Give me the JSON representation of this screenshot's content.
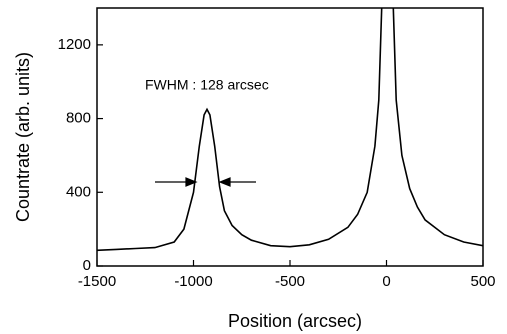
{
  "chart_data": {
    "type": "line",
    "annotation": "FWHM : 128 arcsec",
    "xlabel": "Position (arcsec)",
    "ylabel": "Countrate (arb. units)",
    "x": [
      -1500,
      -1400,
      -1300,
      -1200,
      -1100,
      -1050,
      -1000,
      -970,
      -945,
      -930,
      -915,
      -890,
      -865,
      -840,
      -800,
      -750,
      -700,
      -600,
      -500,
      -400,
      -300,
      -200,
      -150,
      -100,
      -60,
      -40,
      -25,
      5,
      35,
      50,
      80,
      120,
      160,
      200,
      300,
      400,
      500
    ],
    "series": [
      {
        "color": "#000000",
        "values": [
          85,
          90,
          95,
          100,
          130,
          200,
          400,
          650,
          820,
          850,
          820,
          650,
          430,
          300,
          220,
          170,
          140,
          110,
          105,
          115,
          145,
          210,
          280,
          400,
          650,
          900,
          1400,
          null,
          1400,
          900,
          600,
          420,
          320,
          250,
          170,
          130,
          110
        ]
      }
    ],
    "xlim": [
      -1500,
      500
    ],
    "xticks": [
      -1500,
      -1000,
      -500,
      0,
      500
    ],
    "ylim": [
      0,
      1400
    ],
    "yticks": [
      0,
      400,
      800,
      1200
    ]
  }
}
